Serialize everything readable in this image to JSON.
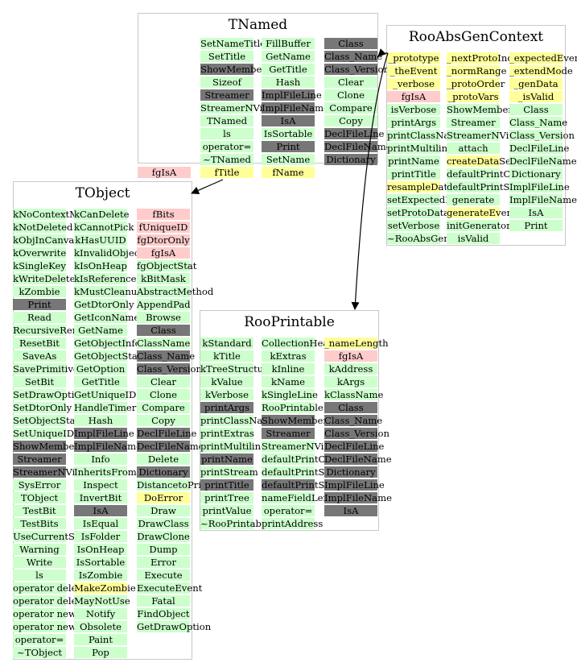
{
  "colors": {
    "public_method": "#ccffcc",
    "hidden_method": "#777777",
    "data_member": "#ffff99",
    "private_member": "#ffcccc",
    "box_border": "#c8c8c8"
  },
  "classes": [
    {
      "id": "tnamed",
      "title": "TNamed",
      "columns": [
        [
          [
            "SetNameTitle",
            "g"
          ],
          [
            "SetTitle",
            "g"
          ],
          [
            "ShowMembers",
            "d"
          ],
          [
            "Sizeof",
            "g"
          ],
          [
            "Streamer",
            "d"
          ],
          [
            "StreamerNVirtual",
            "g"
          ],
          [
            "TNamed",
            "g"
          ],
          [
            "ls",
            "g"
          ],
          [
            "operator=",
            "g"
          ],
          [
            "~TNamed",
            "g"
          ],
          [
            "fTitle",
            "y"
          ]
        ],
        [
          [
            "FillBuffer",
            "g"
          ],
          [
            "GetName",
            "g"
          ],
          [
            "GetTitle",
            "g"
          ],
          [
            "Hash",
            "g"
          ],
          [
            "ImplFileLine",
            "d"
          ],
          [
            "ImplFileName",
            "d"
          ],
          [
            "IsA",
            "d"
          ],
          [
            "IsSortable",
            "g"
          ],
          [
            "Print",
            "d"
          ],
          [
            "SetName",
            "g"
          ],
          [
            "fName",
            "y"
          ]
        ],
        [
          [
            "Class",
            "d"
          ],
          [
            "Class_Name",
            "d"
          ],
          [
            "Class_Version",
            "d"
          ],
          [
            "Clear",
            "g"
          ],
          [
            "Clone",
            "g"
          ],
          [
            "Compare",
            "g"
          ],
          [
            "Copy",
            "g"
          ],
          [
            "DeclFileLine",
            "d"
          ],
          [
            "DeclFileName",
            "d"
          ],
          [
            "Dictionary",
            "d"
          ]
        ]
      ],
      "outside": [
        [
          "fgIsA",
          "p"
        ]
      ]
    },
    {
      "id": "rooabsgencontext",
      "title": "RooAbsGenContext",
      "columns": [
        [
          [
            "_prototype",
            "y"
          ],
          [
            "_theEvent",
            "y"
          ],
          [
            "_verbose",
            "y"
          ],
          [
            "fgIsA",
            "p"
          ],
          [
            "isVerbose",
            "g"
          ],
          [
            "printArgs",
            "g"
          ],
          [
            "printClassName",
            "g"
          ],
          [
            "printMultiline",
            "g"
          ],
          [
            "printName",
            "g"
          ],
          [
            "printTitle",
            "g"
          ],
          [
            "resampleData",
            "y"
          ],
          [
            "setExpectedData",
            "g"
          ],
          [
            "setProtoDataOrder",
            "g"
          ],
          [
            "setVerbose",
            "g"
          ],
          [
            "~RooAbsGenContext",
            "g"
          ]
        ],
        [
          [
            "_nextProtoIndex",
            "y"
          ],
          [
            "_normRange",
            "y"
          ],
          [
            "_protoOrder",
            "y"
          ],
          [
            "_protoVars",
            "y"
          ],
          [
            "ShowMembers",
            "g"
          ],
          [
            "Streamer",
            "g"
          ],
          [
            "StreamerNVirtual",
            "g"
          ],
          [
            "attach",
            "g"
          ],
          [
            "createDataSet",
            "y"
          ],
          [
            "defaultPrintContents",
            "g"
          ],
          [
            "defaultPrintStyle",
            "g"
          ],
          [
            "generate",
            "g"
          ],
          [
            "generateEvent",
            "y"
          ],
          [
            "initGenerator",
            "g"
          ],
          [
            "isValid",
            "g"
          ]
        ],
        [
          [
            "_expectedEvents",
            "y"
          ],
          [
            "_extendMode",
            "y"
          ],
          [
            "_genData",
            "y"
          ],
          [
            "_isValid",
            "y"
          ],
          [
            "Class",
            "g"
          ],
          [
            "Class_Name",
            "g"
          ],
          [
            "Class_Version",
            "g"
          ],
          [
            "DeclFileLine",
            "g"
          ],
          [
            "DeclFileName",
            "g"
          ],
          [
            "Dictionary",
            "g"
          ],
          [
            "ImplFileLine",
            "g"
          ],
          [
            "ImplFileName",
            "g"
          ],
          [
            "IsA",
            "g"
          ],
          [
            "Print",
            "g"
          ]
        ]
      ]
    },
    {
      "id": "tobject",
      "title": "TObject",
      "columns": [
        [
          [
            "kNoContextMenu",
            "g"
          ],
          [
            "kNotDeleted",
            "g"
          ],
          [
            "kObjInCanvas",
            "g"
          ],
          [
            "kOverwrite",
            "g"
          ],
          [
            "kSingleKey",
            "g"
          ],
          [
            "kWriteDelete",
            "g"
          ],
          [
            "kZombie",
            "g"
          ],
          [
            "Print",
            "d"
          ],
          [
            "Read",
            "g"
          ],
          [
            "RecursiveRemove",
            "g"
          ],
          [
            "ResetBit",
            "g"
          ],
          [
            "SaveAs",
            "g"
          ],
          [
            "SavePrimitive",
            "g"
          ],
          [
            "SetBit",
            "g"
          ],
          [
            "SetDrawOption",
            "g"
          ],
          [
            "SetDtorOnly",
            "g"
          ],
          [
            "SetObjectStat",
            "g"
          ],
          [
            "SetUniqueID",
            "g"
          ],
          [
            "ShowMembers",
            "d"
          ],
          [
            "Streamer",
            "d"
          ],
          [
            "StreamerNVirtual",
            "d"
          ],
          [
            "SysError",
            "g"
          ],
          [
            "TObject",
            "g"
          ],
          [
            "TestBit",
            "g"
          ],
          [
            "TestBits",
            "g"
          ],
          [
            "UseCurrentStyle",
            "g"
          ],
          [
            "Warning",
            "g"
          ],
          [
            "Write",
            "g"
          ],
          [
            "ls",
            "g"
          ],
          [
            "operator delete",
            "g"
          ],
          [
            "operator delete[]",
            "g"
          ],
          [
            "operator new",
            "g"
          ],
          [
            "operator new[]",
            "g"
          ],
          [
            "operator=",
            "g"
          ],
          [
            "~TObject",
            "g"
          ]
        ],
        [
          [
            "kCanDelete",
            "g"
          ],
          [
            "kCannotPick",
            "g"
          ],
          [
            "kHasUUID",
            "g"
          ],
          [
            "kInvalidObject",
            "g"
          ],
          [
            "kIsOnHeap",
            "g"
          ],
          [
            "kIsReferenced",
            "g"
          ],
          [
            "kMustCleanup",
            "g"
          ],
          [
            "GetDtorOnly",
            "g"
          ],
          [
            "GetIconName",
            "g"
          ],
          [
            "GetName",
            "g"
          ],
          [
            "GetObjectInfo",
            "g"
          ],
          [
            "GetObjectStat",
            "g"
          ],
          [
            "GetOption",
            "g"
          ],
          [
            "GetTitle",
            "g"
          ],
          [
            "GetUniqueID",
            "g"
          ],
          [
            "HandleTimer",
            "g"
          ],
          [
            "Hash",
            "g"
          ],
          [
            "ImplFileLine",
            "d"
          ],
          [
            "ImplFileName",
            "d"
          ],
          [
            "Info",
            "g"
          ],
          [
            "InheritsFrom",
            "g"
          ],
          [
            "Inspect",
            "g"
          ],
          [
            "InvertBit",
            "g"
          ],
          [
            "IsA",
            "d"
          ],
          [
            "IsEqual",
            "g"
          ],
          [
            "IsFolder",
            "g"
          ],
          [
            "IsOnHeap",
            "g"
          ],
          [
            "IsSortable",
            "g"
          ],
          [
            "IsZombie",
            "g"
          ],
          [
            "MakeZombie",
            "y"
          ],
          [
            "MayNotUse",
            "g"
          ],
          [
            "Notify",
            "g"
          ],
          [
            "Obsolete",
            "g"
          ],
          [
            "Paint",
            "g"
          ],
          [
            "Pop",
            "g"
          ]
        ],
        [
          [
            "fBits",
            "p"
          ],
          [
            "fUniqueID",
            "p"
          ],
          [
            "fgDtorOnly",
            "p"
          ],
          [
            "fgIsA",
            "p"
          ],
          [
            "fgObjectStat",
            "g"
          ],
          [
            "kBitMask",
            "g"
          ],
          [
            "AbstractMethod",
            "g"
          ],
          [
            "AppendPad",
            "g"
          ],
          [
            "Browse",
            "g"
          ],
          [
            "Class",
            "d"
          ],
          [
            "ClassName",
            "g"
          ],
          [
            "Class_Name",
            "d"
          ],
          [
            "Class_Version",
            "d"
          ],
          [
            "Clear",
            "g"
          ],
          [
            "Clone",
            "g"
          ],
          [
            "Compare",
            "g"
          ],
          [
            "Copy",
            "g"
          ],
          [
            "DeclFileLine",
            "d"
          ],
          [
            "DeclFileName",
            "d"
          ],
          [
            "Delete",
            "g"
          ],
          [
            "Dictionary",
            "d"
          ],
          [
            "DistancetoPrimitive",
            "g"
          ],
          [
            "DoError",
            "y"
          ],
          [
            "Draw",
            "g"
          ],
          [
            "DrawClass",
            "g"
          ],
          [
            "DrawClone",
            "g"
          ],
          [
            "Dump",
            "g"
          ],
          [
            "Error",
            "g"
          ],
          [
            "Execute",
            "g"
          ],
          [
            "ExecuteEvent",
            "g"
          ],
          [
            "Fatal",
            "g"
          ],
          [
            "FindObject",
            "g"
          ],
          [
            "GetDrawOption",
            "g"
          ]
        ]
      ]
    },
    {
      "id": "rooprintable",
      "title": "RooPrintable",
      "columns": [
        [
          [
            "kStandard",
            "g"
          ],
          [
            "kTitle",
            "g"
          ],
          [
            "kTreeStructure",
            "g"
          ],
          [
            "kValue",
            "g"
          ],
          [
            "kVerbose",
            "g"
          ],
          [
            "printArgs",
            "d"
          ],
          [
            "printClassName",
            "g"
          ],
          [
            "printExtras",
            "g"
          ],
          [
            "printMultiline",
            "g"
          ],
          [
            "printName",
            "d"
          ],
          [
            "printStream",
            "g"
          ],
          [
            "printTitle",
            "d"
          ],
          [
            "printTree",
            "g"
          ],
          [
            "printValue",
            "g"
          ],
          [
            "~RooPrintable",
            "g"
          ]
        ],
        [
          [
            "CollectionHeader",
            "g"
          ],
          [
            "kExtras",
            "g"
          ],
          [
            "kInline",
            "g"
          ],
          [
            "kName",
            "g"
          ],
          [
            "kSingleLine",
            "g"
          ],
          [
            "RooPrintable",
            "g"
          ],
          [
            "ShowMembers",
            "d"
          ],
          [
            "Streamer",
            "d"
          ],
          [
            "StreamerNVirtual",
            "g"
          ],
          [
            "defaultPrintContents",
            "g"
          ],
          [
            "defaultPrintStream",
            "g"
          ],
          [
            "defaultPrintStyle",
            "d"
          ],
          [
            "nameFieldLength",
            "g"
          ],
          [
            "operator=",
            "g"
          ],
          [
            "printAddress",
            "g"
          ]
        ],
        [
          [
            "_nameLength",
            "y"
          ],
          [
            "fgIsA",
            "p"
          ],
          [
            "kAddress",
            "g"
          ],
          [
            "kArgs",
            "g"
          ],
          [
            "kClassName",
            "g"
          ],
          [
            "Class",
            "d"
          ],
          [
            "Class_Name",
            "d"
          ],
          [
            "Class_Version",
            "d"
          ],
          [
            "DeclFileLine",
            "d"
          ],
          [
            "DeclFileName",
            "d"
          ],
          [
            "Dictionary",
            "d"
          ],
          [
            "ImplFileLine",
            "d"
          ],
          [
            "ImplFileName",
            "d"
          ],
          [
            "IsA",
            "d"
          ]
        ]
      ]
    }
  ]
}
